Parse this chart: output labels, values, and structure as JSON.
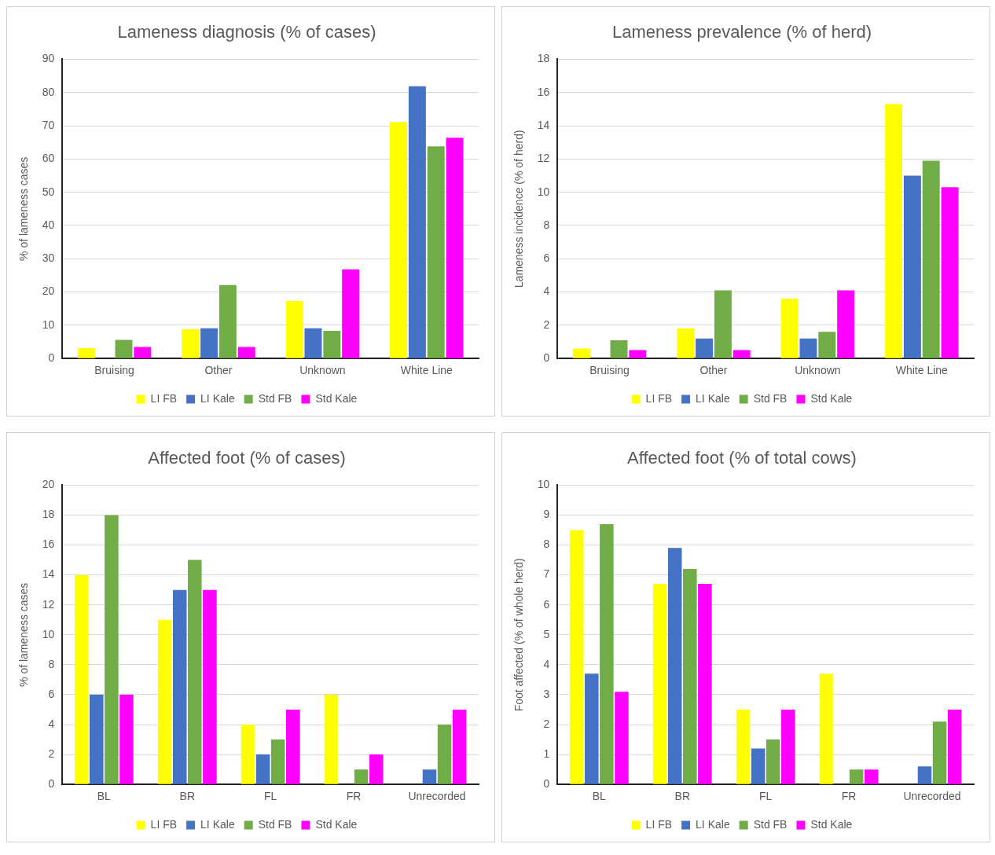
{
  "chart_data": [
    {
      "type": "bar",
      "title": "Lameness diagnosis (% of cases)",
      "ylabel": "% of lameness cases",
      "categories": [
        "Bruising",
        "Other",
        "Unknown",
        "White Line"
      ],
      "series": [
        {
          "name": "LI FB",
          "color": "#ffff00",
          "values": [
            3.1,
            8.8,
            17.3,
            71.1
          ]
        },
        {
          "name": "LI Kale",
          "color": "#4472c4",
          "values": [
            0,
            9.1,
            9.1,
            81.9
          ]
        },
        {
          "name": "Std FB",
          "color": "#70ad47",
          "values": [
            5.6,
            22.1,
            8.3,
            63.8
          ]
        },
        {
          "name": "Std Kale",
          "color": "#ff00ff",
          "values": [
            3.5,
            3.5,
            26.8,
            66.4
          ]
        }
      ],
      "ylim": [
        0,
        90
      ],
      "yticks": [
        0,
        10,
        20,
        30,
        40,
        50,
        60,
        70,
        80,
        90
      ],
      "grid": "y",
      "legend": "bottom"
    },
    {
      "type": "bar",
      "title": "Lameness prevalence (% of herd)",
      "ylabel": "Lameness incidence (% of herd)",
      "categories": [
        "Bruising",
        "Other",
        "Unknown",
        "White Line"
      ],
      "series": [
        {
          "name": "LI FB",
          "color": "#ffff00",
          "values": [
            0.6,
            1.8,
            3.6,
            15.3
          ]
        },
        {
          "name": "LI Kale",
          "color": "#4472c4",
          "values": [
            0,
            1.2,
            1.2,
            11.0
          ]
        },
        {
          "name": "Std FB",
          "color": "#70ad47",
          "values": [
            1.1,
            4.1,
            1.6,
            11.9
          ]
        },
        {
          "name": "Std Kale",
          "color": "#ff00ff",
          "values": [
            0.5,
            0.5,
            4.1,
            10.3
          ]
        }
      ],
      "ylim": [
        0,
        18
      ],
      "yticks": [
        0,
        2,
        4,
        6,
        8,
        10,
        12,
        14,
        16,
        18
      ],
      "grid": "y",
      "legend": "bottom"
    },
    {
      "type": "bar",
      "title": "Affected foot (% of cases)",
      "ylabel": "% of lameness cases",
      "categories": [
        "BL",
        "BR",
        "FL",
        "FR",
        "Unrecorded"
      ],
      "series": [
        {
          "name": "LI FB",
          "color": "#ffff00",
          "values": [
            14,
            11,
            4,
            6,
            0
          ]
        },
        {
          "name": "LI Kale",
          "color": "#4472c4",
          "values": [
            6,
            13,
            2,
            0,
            1
          ]
        },
        {
          "name": "Std FB",
          "color": "#70ad47",
          "values": [
            18,
            15,
            3,
            1,
            4
          ]
        },
        {
          "name": "Std Kale",
          "color": "#ff00ff",
          "values": [
            6,
            13,
            5,
            2,
            5
          ]
        }
      ],
      "ylim": [
        0,
        20
      ],
      "yticks": [
        0,
        2,
        4,
        6,
        8,
        10,
        12,
        14,
        16,
        18,
        20
      ],
      "grid": "y",
      "legend": "bottom"
    },
    {
      "type": "bar",
      "title": "Affected foot (% of total cows)",
      "ylabel": "Foot affected (% of whole herd)",
      "categories": [
        "BL",
        "BR",
        "FL",
        "FR",
        "Unrecorded"
      ],
      "series": [
        {
          "name": "LI FB",
          "color": "#ffff00",
          "values": [
            8.5,
            6.7,
            2.5,
            3.7,
            0
          ]
        },
        {
          "name": "LI Kale",
          "color": "#4472c4",
          "values": [
            3.7,
            7.9,
            1.2,
            0,
            0.6
          ]
        },
        {
          "name": "Std FB",
          "color": "#70ad47",
          "values": [
            8.7,
            7.2,
            1.5,
            0.5,
            2.1
          ]
        },
        {
          "name": "Std Kale",
          "color": "#ff00ff",
          "values": [
            3.1,
            6.7,
            2.5,
            0.5,
            2.5
          ]
        }
      ],
      "ylim": [
        0,
        10
      ],
      "yticks": [
        0,
        1,
        2,
        3,
        4,
        5,
        6,
        7,
        8,
        9,
        10
      ],
      "grid": "y",
      "legend": "bottom"
    }
  ]
}
